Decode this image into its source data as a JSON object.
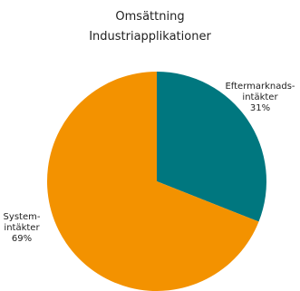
{
  "chart_data": {
    "type": "pie",
    "title": "Omsättning",
    "subtitle": "Industriapplikationer",
    "slices": [
      {
        "label_lines": [
          "Eftermarknads-",
          "intäkter"
        ],
        "value": 31,
        "value_label": "31%",
        "color": "#00777f"
      },
      {
        "label_lines": [
          "System-",
          "intäkter"
        ],
        "value": 69,
        "value_label": "69%",
        "color": "#f39200"
      }
    ],
    "legend": "none"
  }
}
